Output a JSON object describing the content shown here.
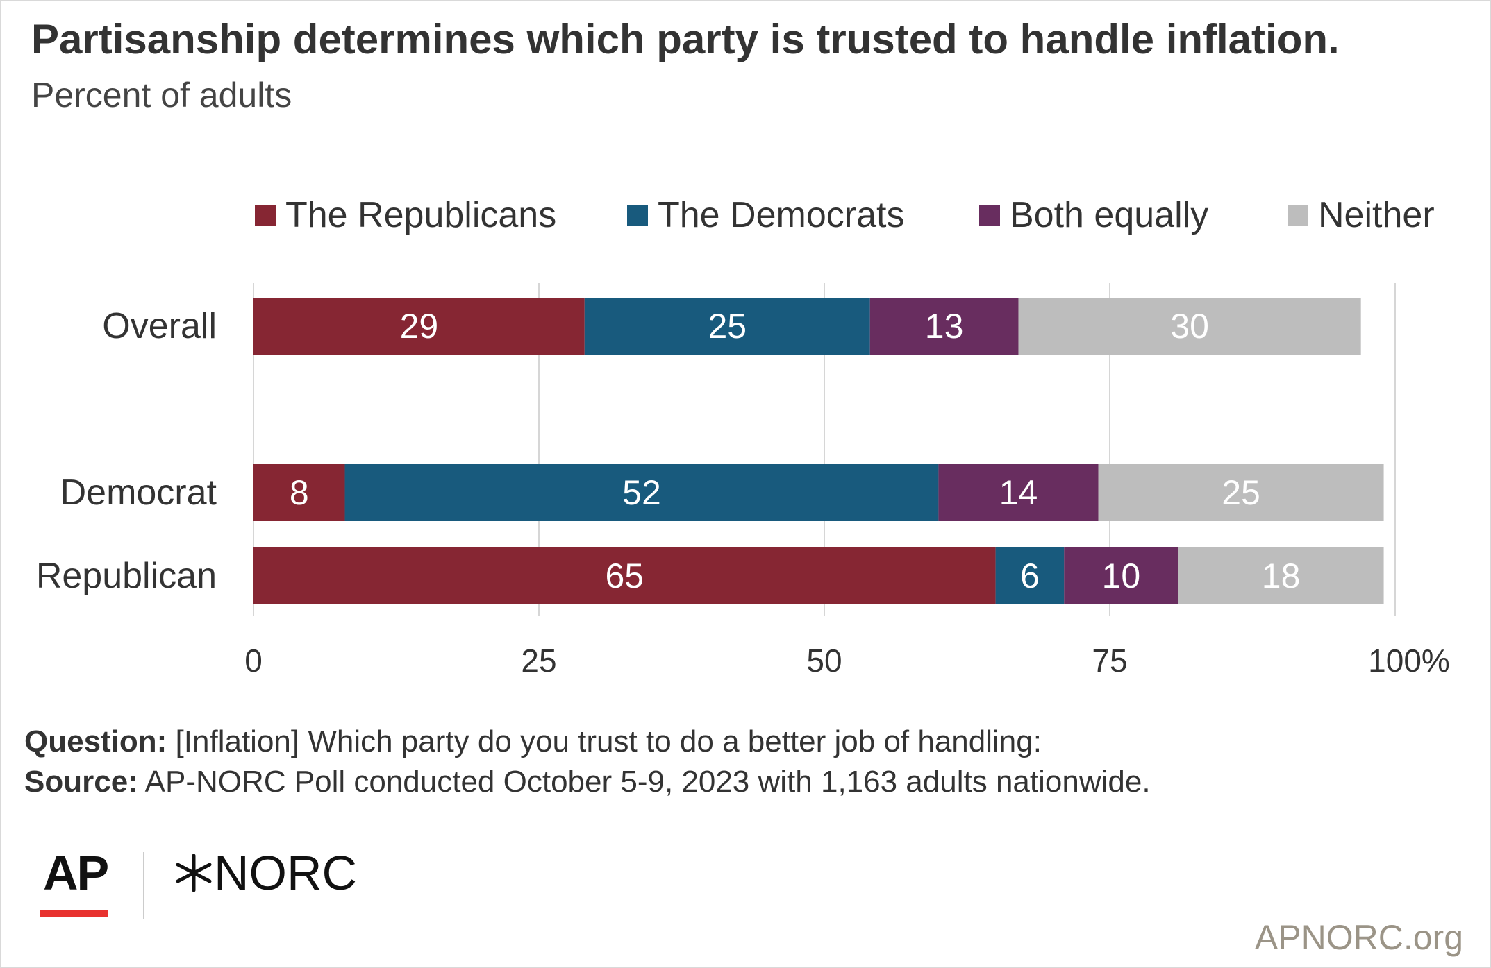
{
  "header": {
    "title": "Partisanship determines which party is trusted to handle inflation.",
    "subtitle": "Percent of adults"
  },
  "chart_data": {
    "type": "bar",
    "orientation": "horizontal",
    "stacked": true,
    "categories": [
      "Overall",
      "Democrat",
      "Republican"
    ],
    "series": [
      {
        "name": "The Republicans",
        "color": "#862633",
        "values": [
          29,
          8,
          65
        ]
      },
      {
        "name": "The Democrats",
        "color": "#185a7d",
        "values": [
          25,
          52,
          6
        ]
      },
      {
        "name": "Both equally",
        "color": "#682d5f",
        "values": [
          13,
          14,
          10
        ]
      },
      {
        "name": "Neither",
        "color": "#bdbdbd",
        "values": [
          30,
          25,
          18
        ]
      }
    ],
    "xlim": [
      0,
      100
    ],
    "x_ticks": [
      "0",
      "25",
      "50",
      "75",
      "100%"
    ],
    "grid": true,
    "legend_position": "top"
  },
  "footer": {
    "question_label": "Question:",
    "question_text": " [Inflation] Which party do you trust to do a better job of handling:",
    "source_label": "Source:",
    "source_text": " AP-NORC Poll conducted October 5-9, 2023 with 1,163 adults nationwide."
  },
  "logos": {
    "ap": "AP",
    "norc": "NORC",
    "norc_icon": "star-burst-icon"
  },
  "website": "APNORC.org"
}
